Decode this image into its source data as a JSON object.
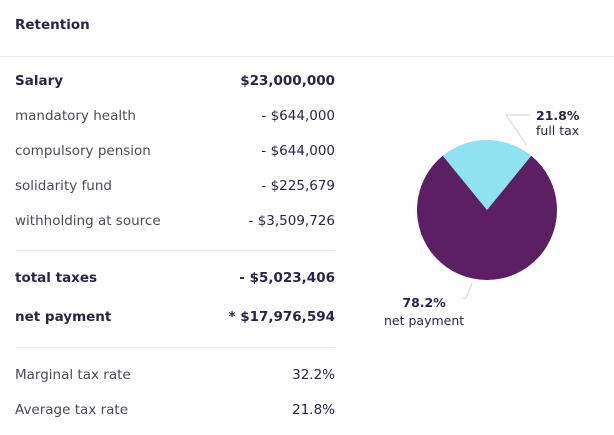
{
  "header": {
    "title": "Retention"
  },
  "breakdown": {
    "salary": {
      "label": "Salary",
      "value": "$23,000,000"
    },
    "deductions": [
      {
        "label": "mandatory health",
        "value": "- $644,000"
      },
      {
        "label": "compulsory pension",
        "value": "- $644,000"
      },
      {
        "label": "solidarity fund",
        "value": "- $225,679"
      },
      {
        "label": "withholding at source",
        "value": "- $3,509,726"
      }
    ],
    "total_taxes": {
      "label": "total taxes",
      "value": "- $5,023,406"
    },
    "net_payment": {
      "label": "net payment",
      "value": "* $17,976,594"
    }
  },
  "rates": {
    "marginal": {
      "label": "Marginal tax rate",
      "value": "32.2%"
    },
    "average": {
      "label": "Average tax rate",
      "value": "21.8%"
    }
  },
  "chart_data": {
    "type": "pie",
    "slices": [
      {
        "label": "full tax",
        "percent_label": "21.8%",
        "value": 21.8,
        "color": "#8fe3f1"
      },
      {
        "label": "net payment",
        "percent_label": "78.2%",
        "value": 78.2,
        "color": "#5c1f63"
      }
    ]
  }
}
